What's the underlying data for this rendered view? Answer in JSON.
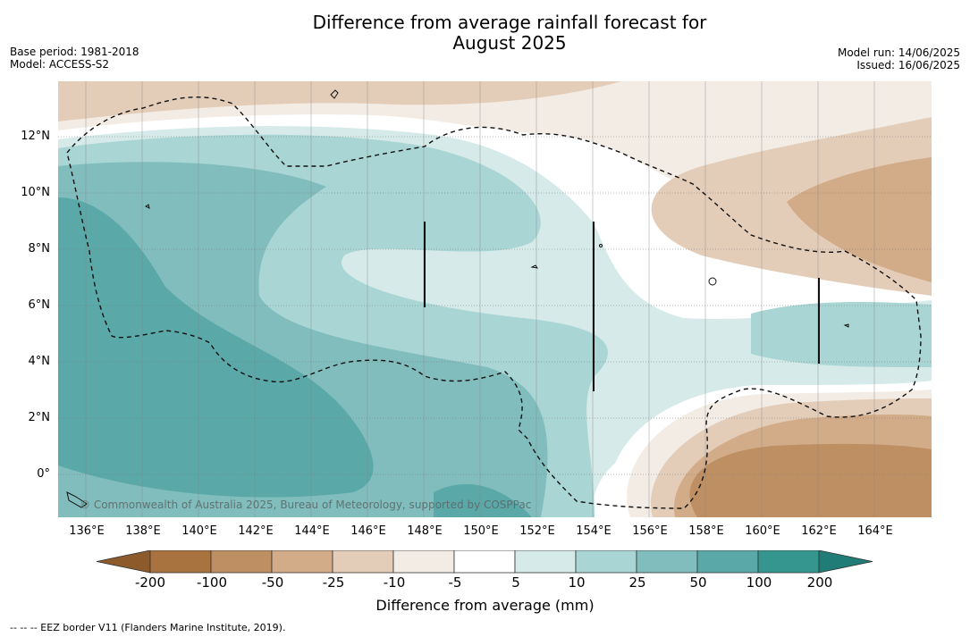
{
  "title_line1": "Difference from average rainfall forecast for",
  "title_line2": "August 2025",
  "meta": {
    "base_period": "Base period: 1981-2018",
    "model": "Model: ACCESS-S2",
    "model_run": "Model run: 14/06/2025",
    "issued": "Issued: 16/06/2025"
  },
  "lat_ticks": [
    "12°N",
    "10°N",
    "8°N",
    "6°N",
    "4°N",
    "2°N",
    "0°"
  ],
  "lon_ticks": [
    "136°E",
    "138°E",
    "140°E",
    "142°E",
    "144°E",
    "146°E",
    "148°E",
    "150°E",
    "152°E",
    "154°E",
    "156°E",
    "158°E",
    "160°E",
    "162°E",
    "164°E"
  ],
  "credit": "© Commonwealth of Australia 2025, Bureau of Meteorology, supported by COSPPac",
  "colorbar": {
    "labels": [
      "-200",
      "-100",
      "-50",
      "-25",
      "-10",
      "-5",
      "5",
      "10",
      "25",
      "50",
      "100",
      "200"
    ],
    "colors": [
      "#a8733f",
      "#be8f63",
      "#d2ac89",
      "#e4cdb8",
      "#f2ece5",
      "#ffffff",
      "#d5eae9",
      "#a9d5d4",
      "#80bdbc",
      "#5aa8a8",
      "#35968f"
    ],
    "under_color": "#8d5a2b",
    "over_color": "#1f7c76",
    "title": "Difference from average (mm)"
  },
  "footer": "--  --  -- EEZ border V11 (Flanders Marine Institute, 2019)."
}
